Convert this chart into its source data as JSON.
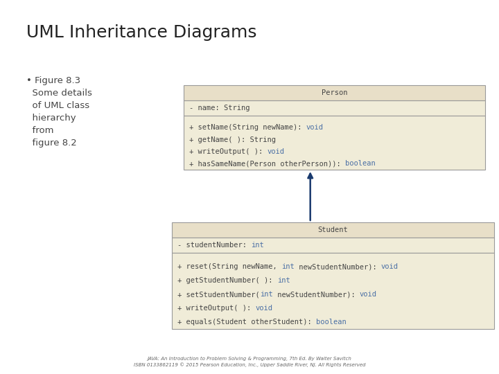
{
  "title": "UML Inheritance Diagrams",
  "bullet_lines": [
    "• Figure 8.3",
    "  Some details",
    "  of UML class",
    "  hierarchy",
    "  from",
    "  figure 8.2"
  ],
  "bg_color": "#ffffff",
  "box_fill_header": "#e8dfc8",
  "box_fill_body": "#f0ecd8",
  "box_border": "#999999",
  "arrow_color": "#1a3a6e",
  "text_dark": "#444444",
  "text_blue": "#4a6fa5",
  "footer_line1": "JAVA: An Introduction to Problem Solving & Programming, 7th Ed. By Walter Savitch",
  "footer_line2": "ISBN 0133862119 © 2015 Pearson Education, Inc., Upper Saddle River, NJ. All Rights Reserved",
  "person": {
    "name": "Person",
    "attr": [
      [
        "- name: String",
        false
      ]
    ],
    "methods": [
      [
        [
          "+ setName(String newName): ",
          false
        ],
        [
          "void",
          true
        ]
      ],
      [
        [
          "+ getName( ): String",
          false
        ]
      ],
      [
        [
          "+ writeOutput( ): ",
          false
        ],
        [
          "void",
          true
        ]
      ],
      [
        [
          "+ hasSameName(Person otherPerson)): ",
          false
        ],
        [
          "boolean",
          true
        ]
      ]
    ]
  },
  "student": {
    "name": "Student",
    "attr": [
      [
        "- studentNumber: ",
        false
      ],
      [
        "int",
        true
      ]
    ],
    "methods": [
      [
        [
          "+ reset(String newName, ",
          false
        ],
        [
          "int",
          true
        ],
        [
          " newStudentNumber): ",
          false
        ],
        [
          "void",
          true
        ]
      ],
      [
        [
          "+ getStudentNumber( ): ",
          false
        ],
        [
          "int",
          true
        ]
      ],
      [
        [
          "+ setStudentNumber(",
          false
        ],
        [
          "int",
          true
        ],
        [
          " newStudentNumber): ",
          false
        ],
        [
          "void",
          true
        ]
      ],
      [
        [
          "+ writeOutput( ): ",
          false
        ],
        [
          "void",
          true
        ]
      ],
      [
        [
          "+ equals(Student otherStudent): ",
          false
        ],
        [
          "boolean",
          true
        ]
      ]
    ]
  }
}
